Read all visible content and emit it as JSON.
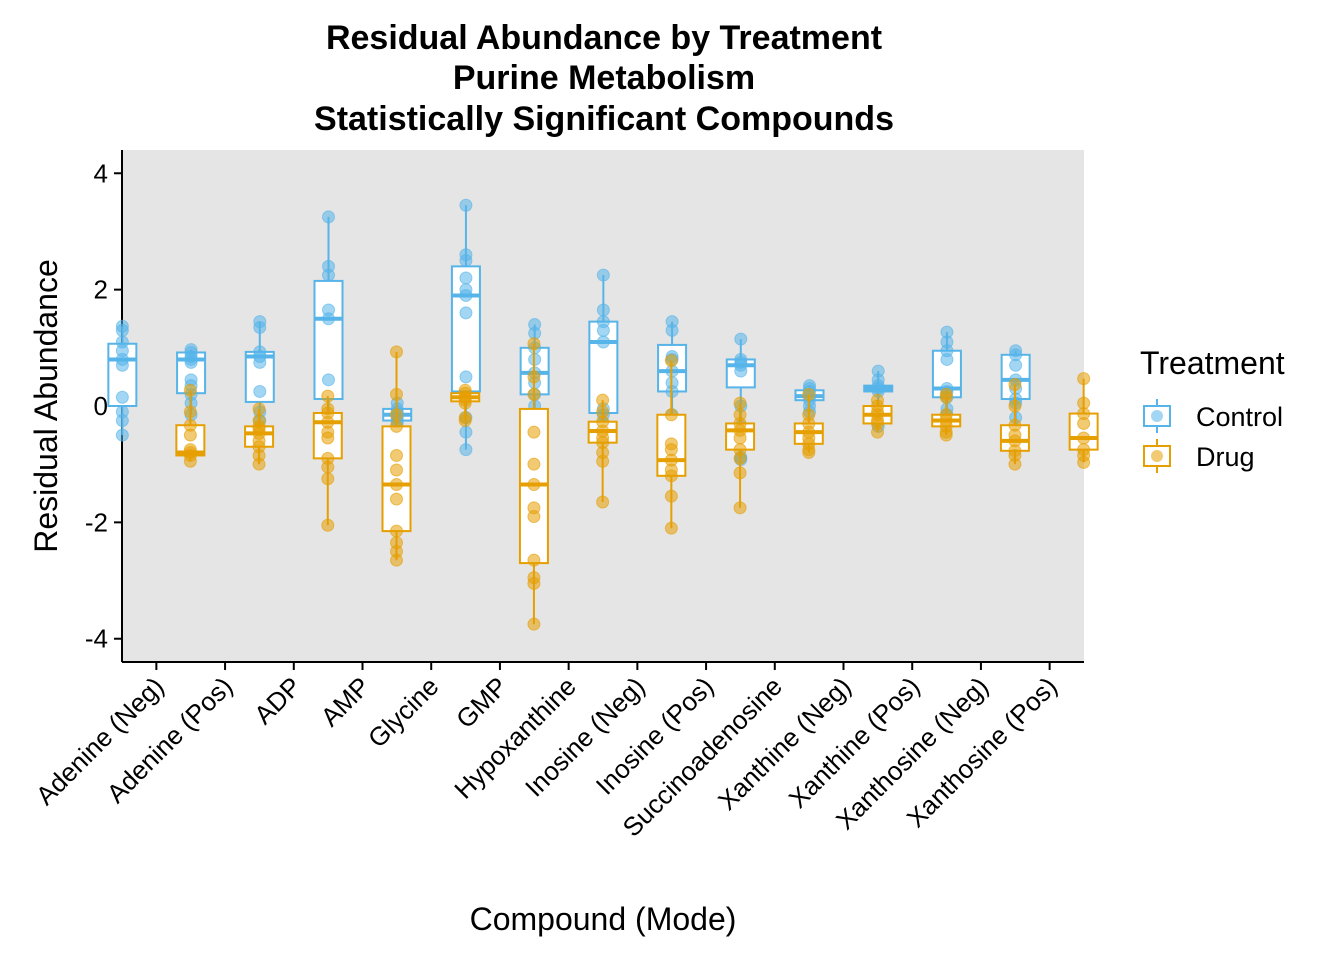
{
  "chart_data": {
    "type": "box",
    "title": [
      "Residual Abundance by Treatment",
      "Purine Metabolism",
      "Statistically Significant Compounds"
    ],
    "xlabel": "Compound (Mode)",
    "ylabel": "Residual Abundance",
    "ylim": [
      -4.4,
      4.4
    ],
    "yticks": [
      -4,
      -2,
      0,
      2,
      4
    ],
    "yticklabels": [
      "-4",
      "-2",
      "0",
      "2",
      "4"
    ],
    "categories": [
      "Adenine (Neg)",
      "Adenine (Pos)",
      "ADP",
      "AMP",
      "Glycine",
      "GMP",
      "Hypoxanthine",
      "Inosine (Neg)",
      "Inosine (Pos)",
      "Succinoadenosine",
      "Xanthine (Neg)",
      "Xanthine (Pos)",
      "Xanthosine (Neg)",
      "Xanthosine (Pos)"
    ],
    "legend": {
      "title": "Treatment",
      "position": "right"
    },
    "panel_background": "#e5e5e5",
    "series": [
      {
        "name": "Control",
        "color": "#56b4e9",
        "boxes": [
          {
            "lower": -0.5,
            "q1": 0.0,
            "median": 0.8,
            "q3": 1.07,
            "upper": 1.37,
            "points": [
              1.37,
              1.3,
              1.1,
              0.95,
              0.8,
              0.7,
              0.15,
              -0.1,
              -0.25,
              -0.5
            ]
          },
          {
            "lower": -0.15,
            "q1": 0.22,
            "median": 0.8,
            "q3": 0.92,
            "upper": 0.97,
            "points": [
              0.97,
              0.92,
              0.85,
              0.8,
              0.75,
              0.45,
              0.35,
              0.2,
              0.05,
              -0.15
            ]
          },
          {
            "lower": -0.55,
            "q1": 0.07,
            "median": 0.85,
            "q3": 0.93,
            "upper": 1.45,
            "points": [
              1.45,
              1.35,
              0.93,
              0.85,
              0.75,
              0.25,
              -0.1,
              -0.25,
              -0.55
            ]
          },
          {
            "lower": -0.45,
            "q1": 0.12,
            "median": 1.5,
            "q3": 2.15,
            "upper": 3.25,
            "points": [
              3.25,
              2.4,
              2.25,
              1.65,
              1.5,
              0.45,
              -0.3,
              -0.45
            ]
          },
          {
            "lower": -0.3,
            "q1": -0.25,
            "median": -0.15,
            "q3": -0.05,
            "upper": 0.05,
            "points": [
              0.05,
              -0.05,
              -0.1,
              -0.15,
              -0.2,
              -0.25,
              -0.3
            ]
          },
          {
            "lower": -0.75,
            "q1": 0.25,
            "median": 1.9,
            "q3": 2.4,
            "upper": 3.45,
            "points": [
              3.45,
              2.6,
              2.5,
              2.2,
              2.0,
              1.9,
              1.6,
              0.5,
              -0.2,
              -0.45,
              -0.75
            ]
          },
          {
            "lower": -0.2,
            "q1": 0.2,
            "median": 0.57,
            "q3": 1.0,
            "upper": 1.4,
            "points": [
              1.4,
              1.25,
              1.0,
              0.8,
              0.57,
              0.4,
              0.2,
              0.0,
              -0.2
            ]
          },
          {
            "lower": -0.3,
            "q1": -0.12,
            "median": 1.1,
            "q3": 1.45,
            "upper": 2.25,
            "points": [
              2.25,
              1.65,
              1.45,
              1.3,
              1.1,
              -0.05,
              -0.15,
              -0.3
            ]
          },
          {
            "lower": -0.25,
            "q1": 0.25,
            "median": 0.6,
            "q3": 1.05,
            "upper": 1.45,
            "points": [
              1.45,
              1.3,
              0.85,
              0.8,
              0.6,
              0.4,
              0.25,
              -0.15,
              -0.25
            ]
          },
          {
            "lower": -0.9,
            "q1": 0.32,
            "median": 0.7,
            "q3": 0.8,
            "upper": 1.15,
            "points": [
              1.15,
              0.8,
              0.75,
              0.7,
              0.6,
              0.0,
              -0.35,
              -0.88,
              -0.92
            ]
          },
          {
            "lower": -0.1,
            "q1": 0.1,
            "median": 0.17,
            "q3": 0.27,
            "upper": 0.35,
            "points": [
              0.35,
              0.3,
              0.25,
              0.17,
              0.1,
              0.0,
              -0.1
            ]
          },
          {
            "lower": -0.35,
            "q1": 0.25,
            "median": 0.3,
            "q3": 0.35,
            "upper": 0.6,
            "points": [
              0.6,
              0.45,
              0.35,
              0.3,
              0.25,
              -0.1,
              -0.2,
              -0.35
            ]
          },
          {
            "lower": -0.15,
            "q1": 0.15,
            "median": 0.3,
            "q3": 0.95,
            "upper": 1.27,
            "points": [
              1.27,
              1.1,
              0.95,
              0.8,
              0.3,
              0.25,
              0.15,
              -0.05,
              -0.15
            ]
          },
          {
            "lower": -0.5,
            "q1": 0.12,
            "median": 0.45,
            "q3": 0.88,
            "upper": 0.95,
            "points": [
              0.95,
              0.88,
              0.7,
              0.45,
              0.3,
              0.12,
              0.05,
              -0.2,
              -0.5
            ]
          }
        ]
      },
      {
        "name": "Drug",
        "color": "#e69f00",
        "boxes": [
          {
            "lower": -0.95,
            "q1": -0.85,
            "median": -0.8,
            "q3": -0.33,
            "upper": 0.27,
            "points": [
              0.27,
              -0.1,
              -0.33,
              -0.5,
              -0.75,
              -0.8,
              -0.85,
              -0.95
            ]
          },
          {
            "lower": -1.0,
            "q1": -0.7,
            "median": -0.47,
            "q3": -0.35,
            "upper": -0.05,
            "points": [
              -0.05,
              -0.25,
              -0.35,
              -0.4,
              -0.47,
              -0.6,
              -0.7,
              -0.85,
              -1.0
            ]
          },
          {
            "lower": -2.05,
            "q1": -0.9,
            "median": -0.28,
            "q3": -0.12,
            "upper": 0.17,
            "points": [
              0.17,
              -0.05,
              -0.12,
              -0.28,
              -0.45,
              -0.55,
              -0.9,
              -1.05,
              -1.25,
              -2.05
            ]
          },
          {
            "lower": -2.65,
            "q1": -2.15,
            "median": -1.35,
            "q3": -0.35,
            "upper": 0.93,
            "points": [
              0.93,
              0.2,
              -0.15,
              -0.35,
              -0.85,
              -1.1,
              -1.35,
              -1.6,
              -2.15,
              -2.35,
              -2.5,
              -2.65
            ]
          },
          {
            "lower": -0.25,
            "q1": 0.08,
            "median": 0.15,
            "q3": 0.22,
            "upper": 0.27,
            "points": [
              0.27,
              0.22,
              0.15,
              0.1,
              0.05,
              -0.2,
              -0.25
            ]
          },
          {
            "lower": -3.75,
            "q1": -2.7,
            "median": -1.35,
            "q3": -0.05,
            "upper": 1.07,
            "points": [
              1.07,
              0.5,
              0.2,
              -0.45,
              -1.0,
              -1.35,
              -1.75,
              -1.9,
              -2.65,
              -2.95,
              -3.05,
              -3.75
            ]
          },
          {
            "lower": -1.65,
            "q1": -0.63,
            "median": -0.43,
            "q3": -0.27,
            "upper": 0.1,
            "points": [
              0.1,
              -0.1,
              -0.27,
              -0.43,
              -0.55,
              -0.63,
              -0.8,
              -0.95,
              -1.65
            ]
          },
          {
            "lower": -2.1,
            "q1": -1.2,
            "median": -0.93,
            "q3": -0.15,
            "upper": 0.78,
            "points": [
              0.78,
              -0.15,
              -0.65,
              -0.75,
              -0.93,
              -1.1,
              -1.2,
              -1.55,
              -2.1
            ]
          },
          {
            "lower": -1.75,
            "q1": -0.75,
            "median": -0.42,
            "q3": -0.3,
            "upper": 0.05,
            "points": [
              0.05,
              -0.15,
              -0.3,
              -0.42,
              -0.55,
              -0.75,
              -0.9,
              -1.15,
              -1.75
            ]
          },
          {
            "lower": -0.8,
            "q1": -0.65,
            "median": -0.45,
            "q3": -0.3,
            "upper": 0.2,
            "points": [
              0.2,
              -0.15,
              -0.3,
              -0.45,
              -0.55,
              -0.65,
              -0.75,
              -0.8
            ]
          },
          {
            "lower": -0.45,
            "q1": -0.3,
            "median": -0.15,
            "q3": 0.0,
            "upper": 0.1,
            "points": [
              0.1,
              0.0,
              -0.1,
              -0.15,
              -0.25,
              -0.3,
              -0.45
            ]
          },
          {
            "lower": -0.5,
            "q1": -0.35,
            "median": -0.25,
            "q3": -0.15,
            "upper": 0.2,
            "points": [
              0.2,
              0.15,
              -0.15,
              -0.25,
              -0.35,
              -0.45,
              -0.5
            ]
          },
          {
            "lower": -1.0,
            "q1": -0.77,
            "median": -0.6,
            "q3": -0.33,
            "upper": 0.37,
            "points": [
              0.37,
              0.0,
              -0.33,
              -0.5,
              -0.6,
              -0.77,
              -0.85,
              -1.0
            ]
          },
          {
            "lower": -0.97,
            "q1": -0.75,
            "median": -0.55,
            "q3": -0.13,
            "upper": 0.47,
            "points": [
              0.47,
              0.05,
              -0.13,
              -0.3,
              -0.55,
              -0.75,
              -0.85,
              -0.97
            ]
          }
        ]
      }
    ]
  }
}
